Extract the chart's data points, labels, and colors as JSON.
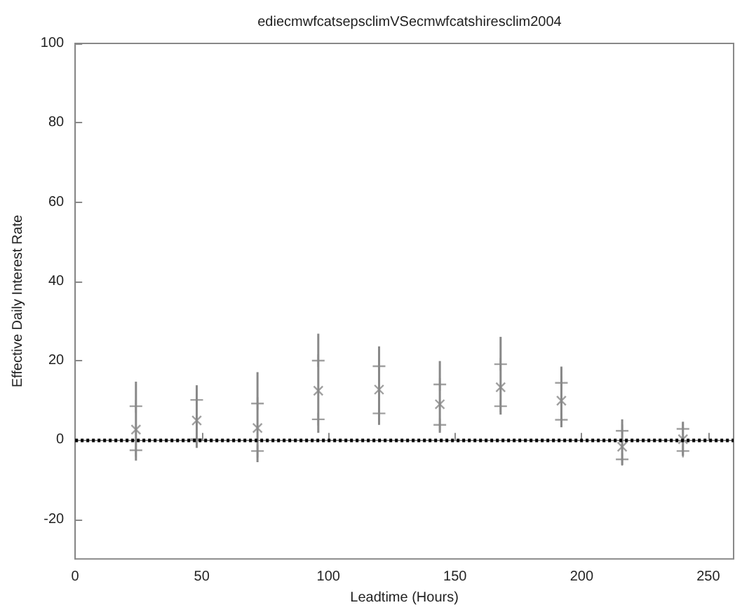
{
  "chart_data": {
    "type": "scatter",
    "title": "ediecmwfcatsepsclimVSecmwfcatshiresclim2004",
    "xlabel": "Leadtime (Hours)",
    "ylabel": "Effective Daily Interest Rate",
    "x": [
      24,
      48,
      72,
      96,
      120,
      144,
      168,
      192,
      216,
      240
    ],
    "series": [
      {
        "color": "#888888",
        "marker": "cross",
        "values": [
          2.6,
          4.9,
          3.0,
          12.4,
          12.7,
          9.0,
          13.3,
          9.9,
          -1.7,
          0.2
        ],
        "errors": [
          [
            -5.2,
            14.7
          ],
          [
            -2.0,
            13.8
          ],
          [
            -5.6,
            17.1
          ],
          [
            1.8,
            26.8
          ],
          [
            3.8,
            23.6
          ],
          [
            1.8,
            19.9
          ],
          [
            6.4,
            26.0
          ],
          [
            3.2,
            18.5
          ],
          [
            -6.3,
            5.2
          ],
          [
            -4.0,
            4.6
          ]
        ]
      },
      {
        "color": "#888888",
        "marker": "cross",
        "values": [
          8.5,
          10.1,
          9.2,
          20.0,
          18.6,
          14.0,
          19.1,
          14.4,
          2.3,
          2.8
        ]
      },
      {
        "color": "#888888",
        "marker": "cross",
        "values": [
          -2.6,
          0.2,
          -2.8,
          5.2,
          6.7,
          3.8,
          8.5,
          5.1,
          -4.9,
          -2.8
        ]
      }
    ],
    "xlim": [
      0,
      260
    ],
    "xticks": [
      0,
      50,
      100,
      150,
      200,
      250
    ],
    "ylim": [
      -30,
      100
    ],
    "yticks": [
      -20,
      0,
      20,
      40,
      60,
      80,
      100
    ],
    "ref_lines": [
      {
        "axis": "y",
        "value": 0,
        "color": "#000000",
        "line_style": "dotted"
      }
    ]
  }
}
